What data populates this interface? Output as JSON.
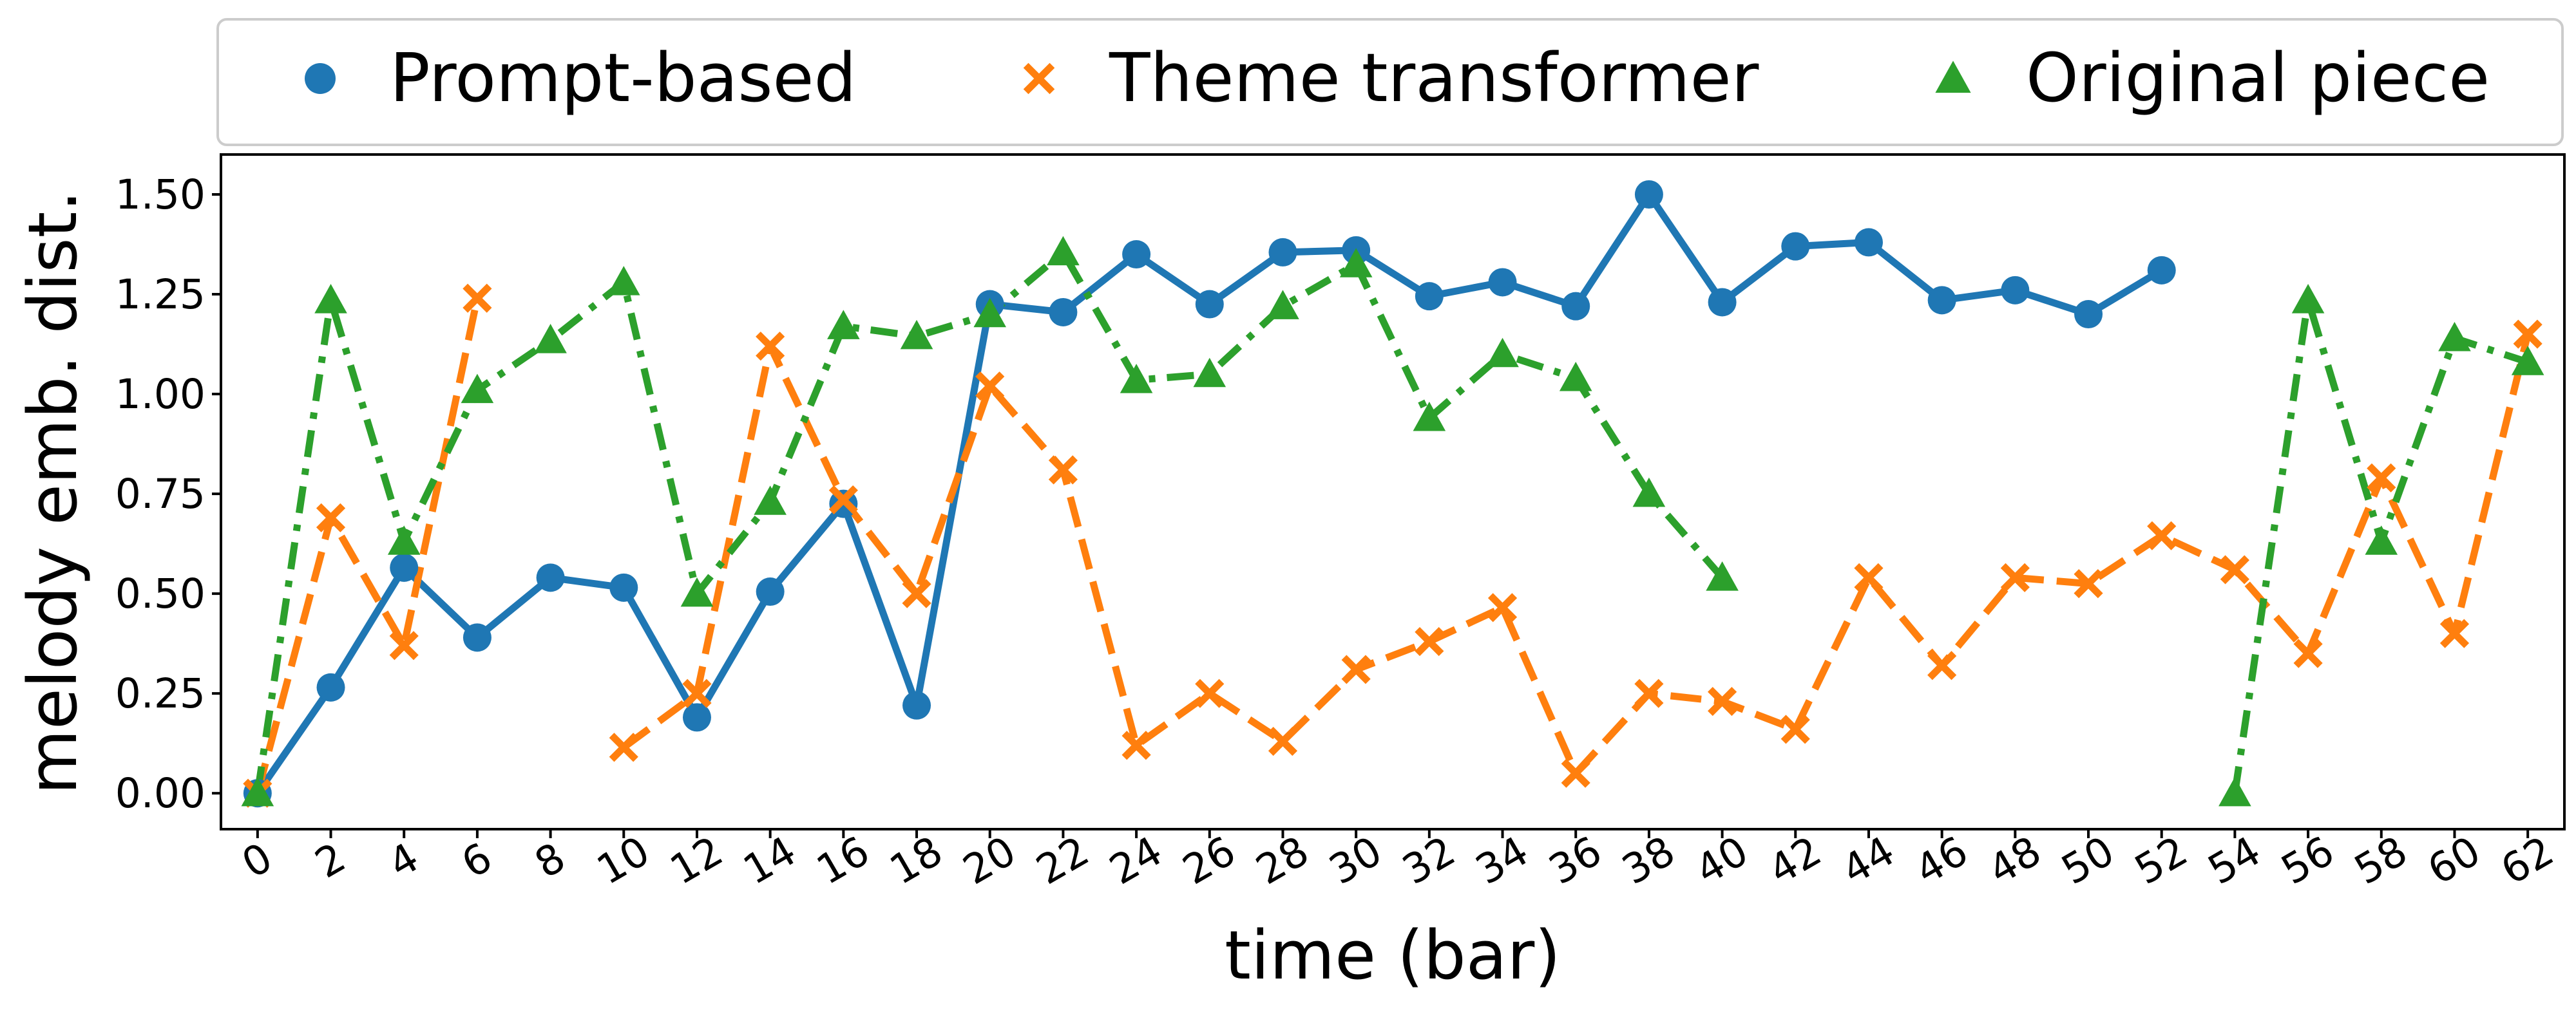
{
  "chart_data": {
    "type": "line",
    "xlabel": "time (bar)",
    "ylabel": "melody emb. dist.",
    "xlim": [
      -1,
      63
    ],
    "ylim": [
      -0.09,
      1.6
    ],
    "xticks": [
      0,
      2,
      4,
      6,
      8,
      10,
      12,
      14,
      16,
      18,
      20,
      22,
      24,
      26,
      28,
      30,
      32,
      34,
      36,
      38,
      40,
      42,
      44,
      46,
      48,
      50,
      52,
      54,
      56,
      58,
      60,
      62
    ],
    "xtick_labels": [
      "0",
      "2",
      "4",
      "6",
      "8",
      "10",
      "12",
      "14",
      "16",
      "18",
      "20",
      "22",
      "24",
      "26",
      "28",
      "30",
      "32",
      "34",
      "36",
      "38",
      "40",
      "42",
      "44",
      "46",
      "48",
      "50",
      "52",
      "54",
      "56",
      "58",
      "60",
      "62"
    ],
    "yticks": [
      0.0,
      0.25,
      0.5,
      0.75,
      1.0,
      1.25,
      1.5
    ],
    "ytick_labels": [
      "0.00",
      "0.25",
      "0.50",
      "0.75",
      "1.00",
      "1.25",
      "1.50"
    ],
    "grid": false,
    "legend_placement": "top",
    "series": [
      {
        "name": "Prompt-based",
        "color": "#1f77b4",
        "marker": "circle",
        "line_style": "solid",
        "segments": [
          {
            "x": [
              0,
              2,
              4,
              6,
              8,
              10,
              12,
              14,
              16,
              18,
              20,
              22,
              24,
              26,
              28,
              30,
              32,
              34,
              36,
              38,
              40,
              42,
              44,
              46,
              48,
              50,
              52
            ],
            "y": [
              0.0,
              0.265,
              0.565,
              0.39,
              0.54,
              0.515,
              0.19,
              0.505,
              0.725,
              0.22,
              1.225,
              1.205,
              1.35,
              1.225,
              1.355,
              1.36,
              1.245,
              1.28,
              1.22,
              1.5,
              1.23,
              1.37,
              1.38,
              1.235,
              1.26,
              1.2,
              1.31
            ]
          }
        ]
      },
      {
        "name": "Theme transformer",
        "color": "#ff7f0e",
        "marker": "x",
        "line_style": "dashed",
        "segments": [
          {
            "x": [
              0,
              2,
              4,
              6
            ],
            "y": [
              0.0,
              0.69,
              0.37,
              1.24
            ]
          },
          {
            "x": [
              10,
              12,
              14,
              16,
              18,
              20,
              22,
              24,
              26,
              28,
              30,
              32,
              34,
              36,
              38,
              40,
              42,
              44,
              46,
              48,
              50,
              52,
              54,
              56,
              58,
              60,
              62
            ],
            "y": [
              0.115,
              0.25,
              1.12,
              0.735,
              0.5,
              1.02,
              0.81,
              0.12,
              0.25,
              0.13,
              0.31,
              0.38,
              0.465,
              0.05,
              0.25,
              0.23,
              0.16,
              0.54,
              0.32,
              0.54,
              0.525,
              0.645,
              0.56,
              0.35,
              0.79,
              0.4,
              1.15
            ]
          }
        ]
      },
      {
        "name": "Original piece",
        "color": "#2ca02c",
        "marker": "triangle",
        "line_style": "dashdot",
        "segments": [
          {
            "x": [
              0,
              2,
              4,
              6,
              8,
              10,
              12,
              14,
              16,
              18,
              20,
              22,
              24,
              26,
              28,
              30,
              32,
              34,
              36,
              38,
              40
            ],
            "y": [
              0.0,
              1.235,
              0.63,
              1.01,
              1.135,
              1.28,
              0.5,
              0.73,
              1.17,
              1.145,
              1.2,
              1.355,
              1.035,
              1.05,
              1.22,
              1.325,
              0.94,
              1.1,
              1.04,
              0.75,
              0.54
            ]
          },
          {
            "x": [
              54,
              56,
              58,
              60,
              62
            ],
            "y": [
              0.0,
              1.235,
              0.63,
              1.14,
              1.08
            ]
          }
        ]
      }
    ]
  }
}
